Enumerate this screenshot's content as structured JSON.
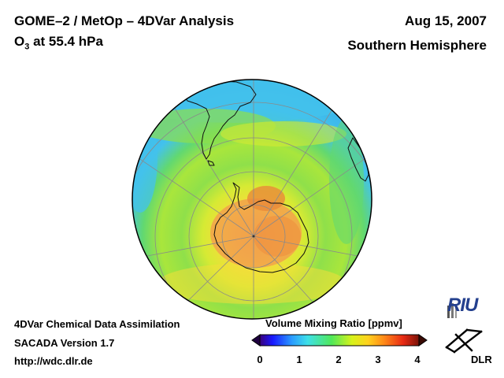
{
  "header": {
    "title": "GOME–2 / MetOp – 4DVar Analysis",
    "species_prefix": "O",
    "species_subscript": "3",
    "species_suffix": " at 55.4 hPa",
    "date": "Aug 15, 2007",
    "hemisphere": "Southern Hemisphere"
  },
  "footer": {
    "line1": "4DVar Chemical Data Assimilation",
    "line2": "SACADA Version 1.7",
    "line3": "http://wdc.dlr.de"
  },
  "colorbar": {
    "title": "Volume Mixing Ratio [ppmv]",
    "ticks": [
      "0",
      "1",
      "2",
      "3",
      "4"
    ],
    "range": [
      0,
      4
    ],
    "colors": [
      "#3a007a",
      "#0000ff",
      "#2a9bff",
      "#3ee0e8",
      "#50e85a",
      "#d8f21a",
      "#ffd21e",
      "#ff8a18",
      "#e82a14",
      "#7a1208"
    ]
  },
  "logos": {
    "riu": "RIU",
    "dlr": "DLR"
  },
  "map": {
    "projection": "orthographic-south-polar",
    "field": "O3 volume mixing ratio",
    "colors": {
      "outer": "#43c2ec",
      "mid": "#8fe04a",
      "ring": "#d6ea34",
      "inner_ring": "#f2de3a",
      "vortex": "#f2a54a",
      "vortex_core": "#f08a3c"
    }
  }
}
